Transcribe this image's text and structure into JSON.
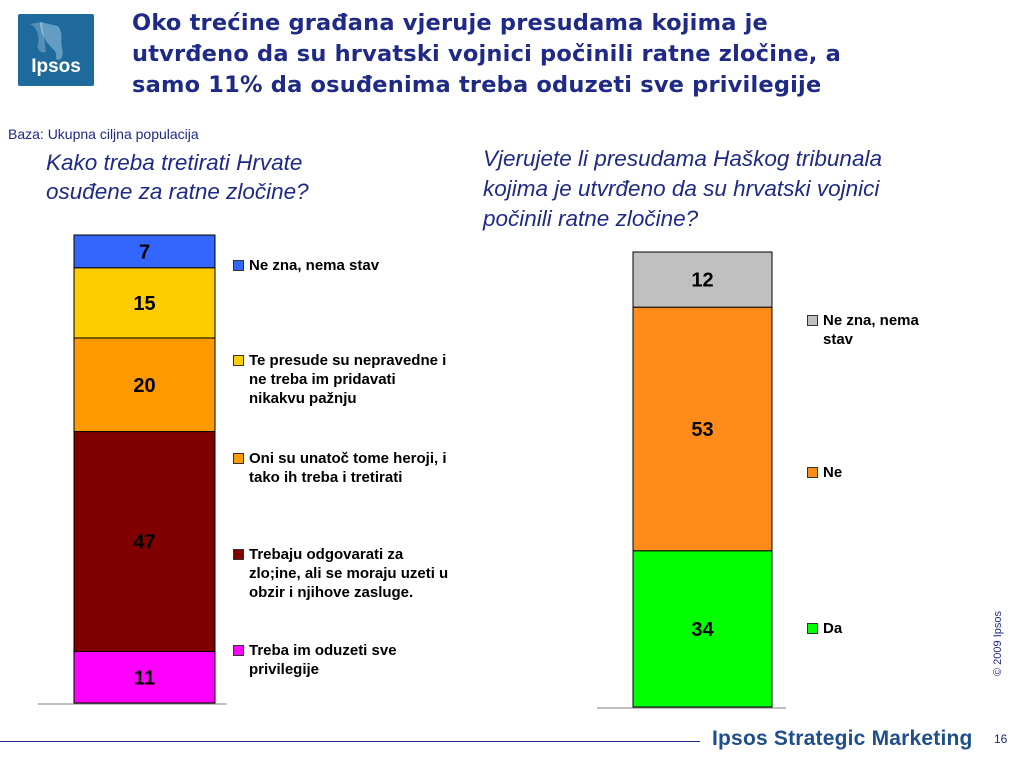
{
  "header": {
    "logo_text": "Ipsos",
    "title_lines": [
      "Oko trećine građana vjeruje presudama kojima je",
      "utvrđeno da su hrvatski vojnici počinili ratne zločine, a",
      "samo 11% da osuđenima treba oduzeti sve privilegije"
    ]
  },
  "base_note": "Baza: Ukupna ciljna populacija",
  "left_question_lines": [
    "Kako treba tretirati Hrvate",
    "osuđene za ratne zločine?"
  ],
  "right_question_lines": [
    "Vjerujete li presudama Haškog tribunala",
    "kojima je utvrđeno da su hrvatski vojnici",
    "počinili ratne zločine?"
  ],
  "chart_data": [
    {
      "type": "bar",
      "stacked": true,
      "unit": "%",
      "categories": [
        ""
      ],
      "series": [
        {
          "name": "Treba im oduzeti sve privilegije",
          "label_lines": [
            "Treba im oduzeti sve",
            "privilegije"
          ],
          "values": [
            11
          ],
          "color": "#ff00ff"
        },
        {
          "name": "Trebaju odgovarati za zlo;ine, ali se moraju uzeti u obzir i njihove zasluge.",
          "label_lines": [
            "Trebaju odgovarati za",
            "zlo;ine, ali se moraju uzeti u",
            "obzir i njihove zasluge."
          ],
          "values": [
            47
          ],
          "color": "#800000"
        },
        {
          "name": "Oni su unatoč tome heroji, i tako ih treba i tretirati",
          "label_lines": [
            "Oni su unatoč tome heroji, i",
            "tako ih treba i tretirati"
          ],
          "values": [
            20
          ],
          "color": "#ff9900"
        },
        {
          "name": "Te presude su nepravedne i ne treba im pridavati nikakvu pažnju",
          "label_lines": [
            "Te presude su nepravedne i",
            "ne treba im pridavati",
            "nikakvu pažnju"
          ],
          "values": [
            15
          ],
          "color": "#ffcc00"
        },
        {
          "name": "Ne zna, nema stav",
          "label_lines": [
            "Ne zna, nema stav"
          ],
          "values": [
            7
          ],
          "color": "#3366ff"
        }
      ]
    },
    {
      "type": "bar",
      "stacked": true,
      "unit": "%",
      "categories": [
        ""
      ],
      "series": [
        {
          "name": "Da",
          "label_lines": [
            "Da"
          ],
          "values": [
            34
          ],
          "color": "#00ff00"
        },
        {
          "name": "Ne",
          "label_lines": [
            "Ne"
          ],
          "values": [
            53
          ],
          "color": "#ff8c1a"
        },
        {
          "name": "Ne zna, nema stav",
          "label_lines": [
            "Ne zna, nema",
            "stav"
          ],
          "values": [
            12
          ],
          "color": "#c0c0c0"
        }
      ]
    }
  ],
  "footer": {
    "copyright": "© 2009 Ipsos",
    "brand": "Ipsos Strategic Marketing",
    "page_number": "16"
  }
}
